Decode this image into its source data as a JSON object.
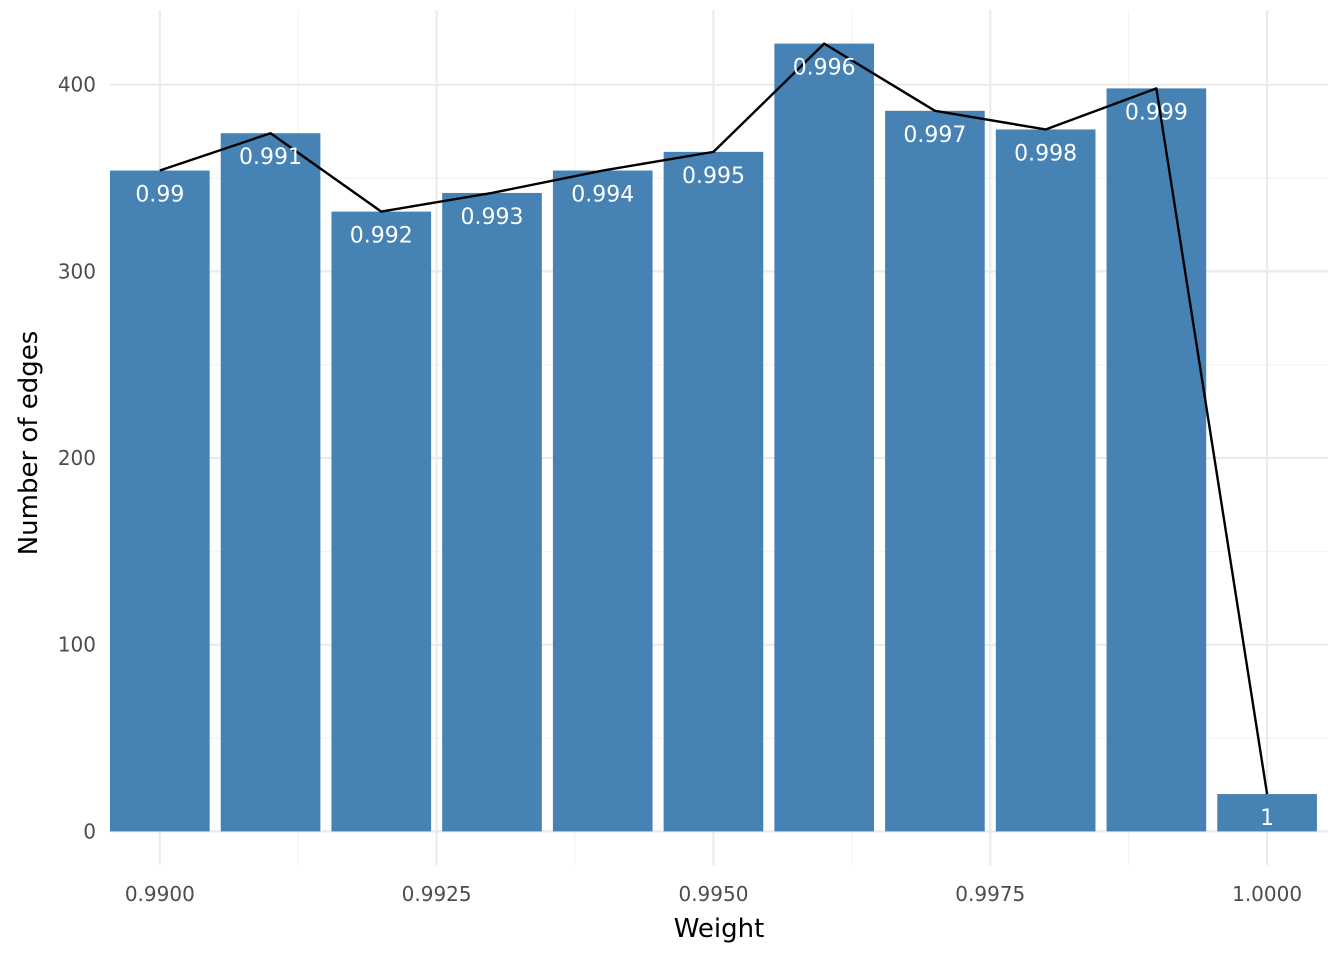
{
  "chart_data": {
    "type": "bar",
    "title": "",
    "xlabel": "Weight",
    "ylabel": "Number of edges",
    "xlim": [
      0.98955,
      1.00055
    ],
    "ylim": [
      -18,
      440
    ],
    "x_ticks": [
      0.99,
      0.9925,
      0.995,
      0.9975,
      1.0
    ],
    "x_tick_labels": [
      "0.9900",
      "0.9925",
      "0.9950",
      "0.9975",
      "1.0000"
    ],
    "y_ticks": [
      0,
      100,
      200,
      300,
      400
    ],
    "y_tick_labels": [
      "0",
      "100",
      "200",
      "300",
      "400"
    ],
    "grid": true,
    "bar_width": 0.0009,
    "bar_color": "#4682b4",
    "line_color": "#000000",
    "x": [
      0.99,
      0.991,
      0.992,
      0.993,
      0.994,
      0.995,
      0.996,
      0.997,
      0.998,
      0.999,
      1.0
    ],
    "bar_labels": [
      "0.99",
      "0.991",
      "0.992",
      "0.993",
      "0.994",
      "0.995",
      "0.996",
      "0.997",
      "0.998",
      "0.999",
      "1"
    ],
    "values": [
      354,
      374,
      332,
      342,
      354,
      364,
      422,
      386,
      376,
      398,
      20
    ],
    "line_values": [
      354,
      374,
      332,
      342,
      354,
      364,
      422,
      386,
      376,
      398,
      20
    ]
  }
}
